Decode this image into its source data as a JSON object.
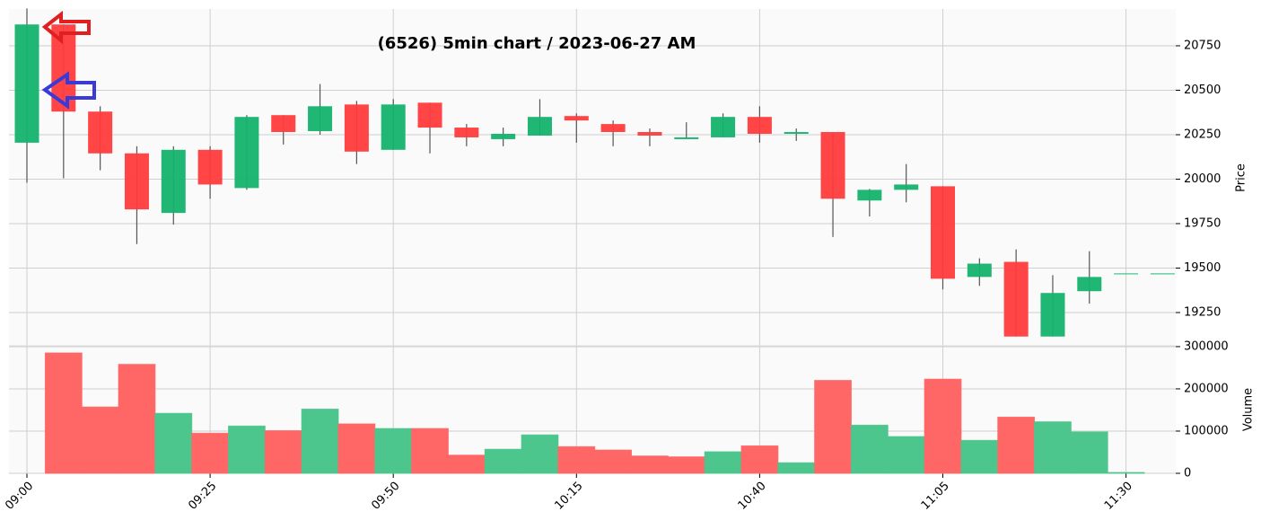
{
  "chart_data": {
    "type": "candlestick",
    "title": "(6526) 5min chart / 2023-06-27 AM",
    "x": [
      "09:00",
      "09:05",
      "09:10",
      "09:15",
      "09:20",
      "09:25",
      "09:30",
      "09:35",
      "09:40",
      "09:45",
      "09:50",
      "09:55",
      "10:00",
      "10:05",
      "10:10",
      "10:15",
      "10:20",
      "10:25",
      "10:30",
      "10:35",
      "10:40",
      "10:45",
      "10:50",
      "10:55",
      "11:00",
      "11:05",
      "11:10",
      "11:15",
      "11:20",
      "11:25",
      "11:30",
      "11:35"
    ],
    "open": [
      20205,
      20870,
      20380,
      20145,
      19810,
      20165,
      19950,
      20360,
      20270,
      20420,
      20165,
      20430,
      20290,
      20225,
      20245,
      20355,
      20310,
      20265,
      20225,
      20235,
      20350,
      20255,
      20265,
      19880,
      19940,
      19960,
      19450,
      19535,
      19115,
      19370,
      19470,
      19470
    ],
    "high": [
      20960,
      20870,
      20410,
      20185,
      20185,
      20185,
      20360,
      20360,
      20535,
      20440,
      20450,
      20430,
      20310,
      20290,
      20450,
      20370,
      20330,
      20285,
      20320,
      20370,
      20410,
      20285,
      20265,
      19945,
      20085,
      19960,
      19555,
      19605,
      19460,
      19595,
      19470,
      19470
    ],
    "low": [
      19980,
      20005,
      20050,
      19635,
      19745,
      19890,
      19940,
      20195,
      20250,
      20085,
      20165,
      20145,
      20185,
      20185,
      20245,
      20205,
      20185,
      20185,
      20225,
      20235,
      20205,
      20215,
      19675,
      19790,
      19870,
      19380,
      19400,
      19115,
      19115,
      19300,
      19470,
      19470
    ],
    "close": [
      20870,
      20380,
      20145,
      19830,
      20165,
      19970,
      20350,
      20265,
      20410,
      20155,
      20420,
      20290,
      20235,
      20255,
      20350,
      20330,
      20265,
      20245,
      20235,
      20350,
      20255,
      20265,
      19890,
      19940,
      19970,
      19440,
      19525,
      19115,
      19360,
      19450,
      19470,
      19470
    ],
    "up_color": "#14b36e",
    "down_color": "#ff3b3b",
    "ylim": [
      19063,
      20957
    ],
    "yticks": [
      19250,
      19500,
      19750,
      20000,
      20250,
      20500,
      20750
    ],
    "ylabel": "Price",
    "xticks": [
      "09:00",
      "09:25",
      "09:50",
      "10:15",
      "10:40",
      "11:05",
      "11:30"
    ],
    "grid": true,
    "volume": {
      "ylabel": "Volume",
      "x": [
        "09:05",
        "09:10",
        "09:15",
        "09:20",
        "09:25",
        "09:30",
        "09:35",
        "09:40",
        "09:45",
        "09:50",
        "09:55",
        "10:00",
        "10:05",
        "10:10",
        "10:15",
        "10:20",
        "10:25",
        "10:30",
        "10:35",
        "10:40",
        "10:45",
        "10:50",
        "10:55",
        "11:00",
        "11:05",
        "11:10",
        "11:15",
        "11:20",
        "11:25",
        "11:30"
      ],
      "values": [
        285000,
        157000,
        258000,
        142000,
        95000,
        112000,
        101000,
        152000,
        117000,
        106000,
        106000,
        43000,
        57000,
        91000,
        63000,
        55000,
        41000,
        39000,
        51000,
        65000,
        25000,
        220000,
        114000,
        87000,
        223000,
        78000,
        133000,
        122000,
        98000,
        2000
      ],
      "colors": [
        "#ff6666",
        "#ff6666",
        "#ff6666",
        "#4cc68c",
        "#ff6666",
        "#4cc68c",
        "#ff6666",
        "#4cc68c",
        "#ff6666",
        "#4cc68c",
        "#ff6666",
        "#ff6666",
        "#4cc68c",
        "#4cc68c",
        "#ff6666",
        "#ff6666",
        "#ff6666",
        "#ff6666",
        "#4cc68c",
        "#ff6666",
        "#4cc68c",
        "#ff6666",
        "#4cc68c",
        "#4cc68c",
        "#ff6666",
        "#4cc68c",
        "#ff6666",
        "#4cc68c",
        "#4cc68c",
        "#4cc68c"
      ],
      "ylim": [
        0,
        302000
      ],
      "yticks": [
        0,
        100000,
        200000,
        300000
      ]
    }
  }
}
